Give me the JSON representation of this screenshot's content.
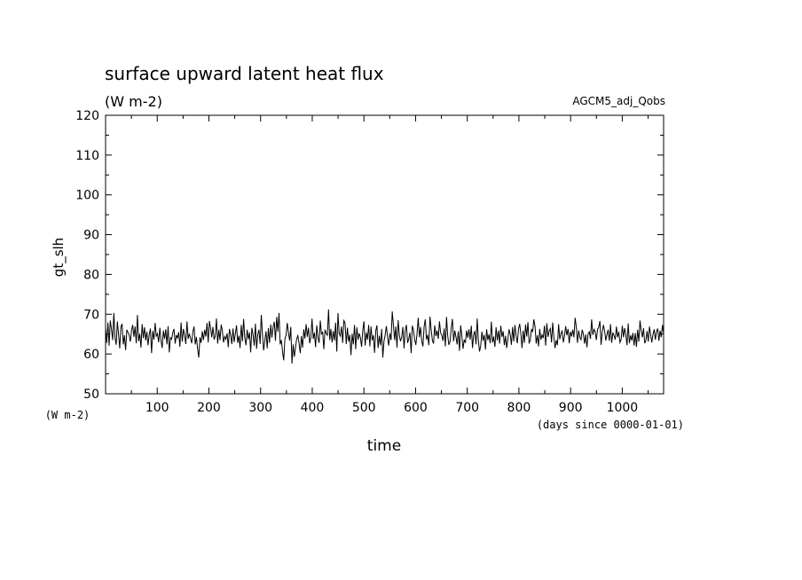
{
  "chart_data": {
    "type": "line",
    "title": "surface upward latent heat flux",
    "subtitle": "(W m-2)",
    "experiment": "AGCM5_adj_Qobs",
    "ylabel": "gt_slh",
    "yunit": "(W m-2)",
    "xlabel": "time",
    "xunit": "(days since 0000-01-01)",
    "xlim": [
      0,
      1080
    ],
    "ylim": [
      50,
      120
    ],
    "xticks": [
      100,
      200,
      300,
      400,
      500,
      600,
      700,
      800,
      900,
      1000
    ],
    "yticks": [
      50,
      60,
      70,
      80,
      90,
      100,
      110,
      120
    ],
    "grid": false,
    "series": [
      {
        "values": [
          66.5,
          62.8,
          67.9,
          62.1,
          68.4,
          66.2,
          63.5,
          70.3,
          64.1,
          62.3,
          68.2,
          64.9,
          61.4,
          66.8,
          67.6,
          62.4,
          64.7,
          61.0,
          66.1,
          65.4,
          64.8,
          63.1,
          65.9,
          67.3,
          64.3,
          66.9,
          62.7,
          69.8,
          63.2,
          65.1,
          61.6,
          67.5,
          64.0,
          66.7,
          63.4,
          65.6,
          62.2,
          64.9,
          66.4,
          60.2,
          65.8,
          63.6,
          67.8,
          64.5,
          65.1,
          62.9,
          66.6,
          63.3,
          61.5,
          65.9,
          63.8,
          66.2,
          62.4,
          67.0,
          60.4,
          64.1,
          63.7,
          65.4,
          66.3,
          62.6,
          64.8,
          63.9,
          65.5,
          61.8,
          67.9,
          63.1,
          66.3,
          64.7,
          62.5,
          68.2,
          63.8,
          65.1,
          64.0,
          62.7,
          65.6,
          66.9,
          62.4,
          64.3,
          61.3,
          59.1,
          64.2,
          62.8,
          65.7,
          63.5,
          66.1,
          64.4,
          67.8,
          62.9,
          68.3,
          66.5,
          64.2,
          66.8,
          63.6,
          64.5,
          68.9,
          62.6,
          66.1,
          63.5,
          67.4,
          65.8,
          62.9,
          64.4,
          63.7,
          65.2,
          61.7,
          66.3,
          64.8,
          62.5,
          66.4,
          63.0,
          65.1,
          67.2,
          62.8,
          64.6,
          61.5,
          67.3,
          63.2,
          68.8,
          64.1,
          62.2,
          66.1,
          63.7,
          65.4,
          60.4,
          66.6,
          64.8,
          62.1,
          67.6,
          61.3,
          64.9,
          66.1,
          62.5,
          69.8,
          64.9,
          60.9,
          63.4,
          65.7,
          61.4,
          66.5,
          62.8,
          67.4,
          64.1,
          66.8,
          68.1,
          63.3,
          69.3,
          65.6,
          70.3,
          62.4,
          63.5,
          60.6,
          58.4,
          63.8,
          64.7,
          67.8,
          65.4,
          63.4,
          66.8,
          57.6,
          62.4,
          59.3,
          61.7,
          63.8,
          64.6,
          62.7,
          60.2,
          64.5,
          61.6,
          66.2,
          63.9,
          67.5,
          64.3,
          66.6,
          62.7,
          64.2,
          68.9,
          63.8,
          65.4,
          61.7,
          67.2,
          64.1,
          62.8,
          68.4,
          64.9,
          65.6,
          61.2,
          66.1,
          65.2,
          64.7,
          71.2,
          63.5,
          66.3,
          62.9,
          65.8,
          63.4,
          67.9,
          60.6,
          70.3,
          65.2,
          64.5,
          66.9,
          62.8,
          68.4,
          67.8,
          62.5,
          66.6,
          63.1,
          64.8,
          59.7,
          65.1,
          62.4,
          67.3,
          61.2,
          66.7,
          63.6,
          65.2,
          64.1,
          61.8,
          65.9,
          68.2,
          62.1,
          65.4,
          63.6,
          67.3,
          61.9,
          66.9,
          63.4,
          64.7,
          60.3,
          65.8,
          67.2,
          61.5,
          64.6,
          62.2,
          66.3,
          59.1,
          63.2,
          64.8,
          67.0,
          64.3,
          62.1,
          65.2,
          63.5,
          70.7,
          67.2,
          63.5,
          66.9,
          61.6,
          68.5,
          64.7,
          63.2,
          64.2,
          66.8,
          61.4,
          65.9,
          67.3,
          62.8,
          63.8,
          65.4,
          60.2,
          67.1,
          66.0,
          63.6,
          62.3,
          65.1,
          69.1,
          64.2,
          66.8,
          63.2,
          61.9,
          66.9,
          68.7,
          63.6,
          64.8,
          62.2,
          69.4,
          66.1,
          63.4,
          62.6,
          67.2,
          64.5,
          65.9,
          63.8,
          68.2,
          65.3,
          64.7,
          63.3,
          66.4,
          61.9,
          69.3,
          64.6,
          62.3,
          63.1,
          66.6,
          68.8,
          63.2,
          65.9,
          64.3,
          62.4,
          65.7,
          60.8,
          67.2,
          64.5,
          61.3,
          63.6,
          62.8,
          65.9,
          64.1,
          66.2,
          63.6,
          67.1,
          61.5,
          64.8,
          65.8,
          62.4,
          68.9,
          63.3,
          60.6,
          62.1,
          65.6,
          63.3,
          64.8,
          61.1,
          66.2,
          63.5,
          64.9,
          62.7,
          68.1,
          62.9,
          64.4,
          61.8,
          66.7,
          63.4,
          65.9,
          62.6,
          67.1,
          64.3,
          65.7,
          62.2,
          64.6,
          61.5,
          63.8,
          66.2,
          64.9,
          62.3,
          66.8,
          63.2,
          67.3,
          64.5,
          62.7,
          66.2,
          67.6,
          65.1,
          61.5,
          65.9,
          62.8,
          67.4,
          64.4,
          68.0,
          62.8,
          63.4,
          66.3,
          65.5,
          68.7,
          67.0,
          62.6,
          64.7,
          61.9,
          66.3,
          63.6,
          64.8,
          64.0,
          67.1,
          62.1,
          67.7,
          64.3,
          65.8,
          66.4,
          62.9,
          67.9,
          64.1,
          61.5,
          63.5,
          62.2,
          67.5,
          63.7,
          65.1,
          65.9,
          62.9,
          64.6,
          67.0,
          64.7,
          66.3,
          62.7,
          65.6,
          64.4,
          66.1,
          64.2,
          69.1,
          66.8,
          62.8,
          65.9,
          64.2,
          63.6,
          66.1,
          65.0,
          62.6,
          64.9,
          61.7,
          65.1,
          65.6,
          63.8,
          68.7,
          64.8,
          66.2,
          65.6,
          63.5,
          66.2,
          66.7,
          68.3,
          62.3,
          65.6,
          67.3,
          65.8,
          63.4,
          64.9,
          66.1,
          63.3,
          67.5,
          62.8,
          65.4,
          64.6,
          63.6,
          66.9,
          64.2,
          65.6,
          62.9,
          63.6,
          67.1,
          64.2,
          66.5,
          64.8,
          62.2,
          67.7,
          62.7,
          64.7,
          63.4,
          65.3,
          62.1,
          65.3,
          61.8,
          66.1,
          63.1,
          68.4,
          65.9,
          64.2,
          66.5,
          62.7,
          63.4,
          65.8,
          63.1,
          66.9,
          64.8,
          62.9,
          64.9,
          66.2,
          63.6,
          65.6,
          66.4,
          63.3,
          65.9,
          64.2,
          67.3,
          65.1
        ]
      }
    ]
  }
}
